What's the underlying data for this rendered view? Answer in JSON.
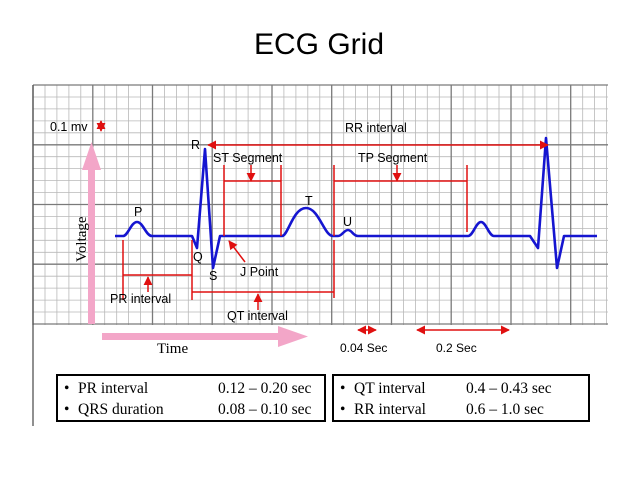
{
  "page": {
    "title": "ECG Grid"
  },
  "labels": {
    "voltage_scale": "0.1 mv",
    "voltage_axis": "Voltage",
    "time_axis": "Time",
    "wave_p": "P",
    "wave_q": "Q",
    "wave_r": "R",
    "wave_s": "S",
    "wave_t": "T",
    "wave_u": "U",
    "j_point": "J Point",
    "st_segment": "ST Segment",
    "tp_segment": "TP Segment",
    "rr_interval": "RR interval",
    "pr_interval": "PR interval",
    "qt_interval": "QT interval",
    "small_box": "0.04 Sec",
    "large_box": "0.2 Sec"
  },
  "legend_left": [
    {
      "bullet": "•",
      "name": "PR interval",
      "value": "0.12 – 0.20 sec"
    },
    {
      "bullet": "•",
      "name": "QRS duration",
      "value": "0.08 – 0.10 sec"
    }
  ],
  "legend_right": [
    {
      "bullet": "•",
      "name": "QT interval",
      "value": "0.4 – 0.43 sec"
    },
    {
      "bullet": "•",
      "name": "RR interval",
      "value": "0.6 – 1.0   sec"
    }
  ],
  "colors": {
    "trace": "#1515d0",
    "annotation": "#e01010",
    "axis_arrow": "#f3a6c8",
    "grid_fine": "#b8b8b8",
    "grid_major": "#7a7a7a"
  }
}
